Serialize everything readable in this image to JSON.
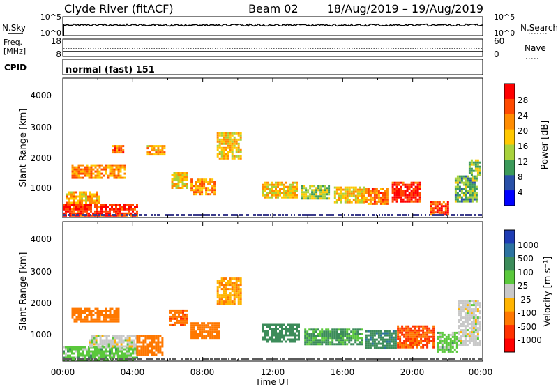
{
  "header": {
    "station": "Clyde River (fitACF)",
    "beam": "Beam 02",
    "date_range": "18/Aug/2019 – 19/Aug/2019"
  },
  "strips": {
    "nsky": {
      "label": "N.Sky",
      "right_label": "N.Search",
      "left_ticks": [
        "10^5",
        "10^0"
      ],
      "right_ticks": [
        "10^5",
        "10^0"
      ]
    },
    "freq": {
      "label_line1": "Freq.",
      "label_line2": "[MHz]",
      "right_label": "Nave",
      "left_ticks": [
        "18",
        "8"
      ],
      "right_ticks": [
        "60",
        "0"
      ]
    },
    "cpid": {
      "label": "CPID",
      "value": "normal (fast) 151"
    }
  },
  "colorbars": {
    "power": {
      "label": "Power [dB]",
      "ticks": [
        "28",
        "24",
        "20",
        "16",
        "12",
        "8",
        "4"
      ],
      "colors": [
        "#ff0000",
        "#ff4a00",
        "#ff8c00",
        "#ffc800",
        "#a8d23c",
        "#3c9a5a",
        "#2850a8",
        "#0000ff"
      ]
    },
    "velocity": {
      "label": "Velocity [m s⁻¹]",
      "ticks": [
        "1000",
        "500",
        "100",
        "25",
        "-25",
        "-100",
        "-500",
        "-1000"
      ],
      "colors": [
        "#1e3cb4",
        "#2d73a0",
        "#3c8c5a",
        "#5ac83c",
        "#c8c8c8",
        "#ffb400",
        "#ff7800",
        "#ff3200",
        "#ff0000"
      ]
    }
  },
  "axes": {
    "ylabel": "Slant Range [km]",
    "yticks": [
      "1000",
      "2000",
      "3000",
      "4000"
    ],
    "xticks": [
      "00:00",
      "04:00",
      "08:00",
      "12:00",
      "16:00",
      "20:00",
      "00:00"
    ],
    "xlabel": "Time UT"
  },
  "chart_data": [
    {
      "type": "heatmap",
      "title": "",
      "x_unit": "hours UT",
      "xlim": [
        0,
        24
      ],
      "y_unit": "km",
      "ylim": [
        180,
        4550
      ],
      "color_scale": {
        "label": "Power [dB]",
        "range": [
          0,
          32
        ]
      },
      "cells": [
        {
          "t0": 0.0,
          "t1": 4.3,
          "r0": 250,
          "r1": 600,
          "value": 28
        },
        {
          "t0": 0.2,
          "t1": 2.0,
          "r0": 650,
          "r1": 1000,
          "value": 20
        },
        {
          "t0": 0.5,
          "t1": 3.6,
          "r0": 1400,
          "r1": 1850,
          "value": 22
        },
        {
          "t0": 2.8,
          "t1": 3.5,
          "r0": 2250,
          "r1": 2450,
          "value": 24
        },
        {
          "t0": 4.8,
          "t1": 5.8,
          "r0": 2150,
          "r1": 2450,
          "value": 20
        },
        {
          "t0": 6.2,
          "t1": 7.1,
          "r0": 1100,
          "r1": 1600,
          "value": 18
        },
        {
          "t0": 7.3,
          "t1": 8.7,
          "r0": 900,
          "r1": 1400,
          "value": 22
        },
        {
          "t0": 8.8,
          "t1": 10.2,
          "r0": 2000,
          "r1": 2850,
          "value": 18
        },
        {
          "t0": 11.4,
          "t1": 13.4,
          "r0": 800,
          "r1": 1300,
          "value": 18
        },
        {
          "t0": 13.6,
          "t1": 15.2,
          "r0": 800,
          "r1": 1200,
          "value": 14
        },
        {
          "t0": 15.5,
          "t1": 17.2,
          "r0": 650,
          "r1": 1150,
          "value": 18
        },
        {
          "t0": 17.3,
          "t1": 18.6,
          "r0": 600,
          "r1": 1100,
          "value": 24
        },
        {
          "t0": 18.8,
          "t1": 20.4,
          "r0": 650,
          "r1": 1300,
          "value": 28
        },
        {
          "t0": 21.0,
          "t1": 22.0,
          "r0": 300,
          "r1": 700,
          "value": 26
        },
        {
          "t0": 22.4,
          "t1": 23.6,
          "r0": 700,
          "r1": 1500,
          "value": 12
        },
        {
          "t0": 23.2,
          "t1": 23.9,
          "r0": 1500,
          "r1": 2000,
          "value": 14
        }
      ]
    },
    {
      "type": "heatmap",
      "title": "",
      "x_unit": "hours UT",
      "xlim": [
        0,
        24
      ],
      "y_unit": "km",
      "ylim": [
        180,
        4550
      ],
      "color_scale": {
        "label": "Velocity [m s⁻¹]",
        "range": [
          -1000,
          1000
        ]
      },
      "cells": [
        {
          "t0": 0.0,
          "t1": 4.2,
          "r0": 250,
          "r1": 650,
          "value": 60
        },
        {
          "t0": 1.5,
          "t1": 4.2,
          "r0": 650,
          "r1": 1000,
          "value": 0
        },
        {
          "t0": 0.5,
          "t1": 3.2,
          "r0": 1450,
          "r1": 1850,
          "value": -200
        },
        {
          "t0": 4.2,
          "t1": 5.7,
          "r0": 400,
          "r1": 1000,
          "value": -300
        },
        {
          "t0": 6.1,
          "t1": 7.1,
          "r0": 1300,
          "r1": 1800,
          "value": -400
        },
        {
          "t0": 7.3,
          "t1": 8.9,
          "r0": 900,
          "r1": 1400,
          "value": -350
        },
        {
          "t0": 8.8,
          "t1": 10.2,
          "r0": 2000,
          "r1": 2800,
          "value": -80
        },
        {
          "t0": 11.4,
          "t1": 13.5,
          "r0": 800,
          "r1": 1350,
          "value": 200
        },
        {
          "t0": 13.8,
          "t1": 17.1,
          "r0": 700,
          "r1": 1200,
          "value": 120
        },
        {
          "t0": 17.3,
          "t1": 19.0,
          "r0": 600,
          "r1": 1150,
          "value": 400
        },
        {
          "t0": 19.1,
          "t1": 21.2,
          "r0": 600,
          "r1": 1300,
          "value": -500
        },
        {
          "t0": 21.4,
          "t1": 22.5,
          "r0": 500,
          "r1": 1100,
          "value": 60
        },
        {
          "t0": 22.6,
          "t1": 23.9,
          "r0": 700,
          "r1": 2100,
          "value": 0
        }
      ]
    }
  ]
}
